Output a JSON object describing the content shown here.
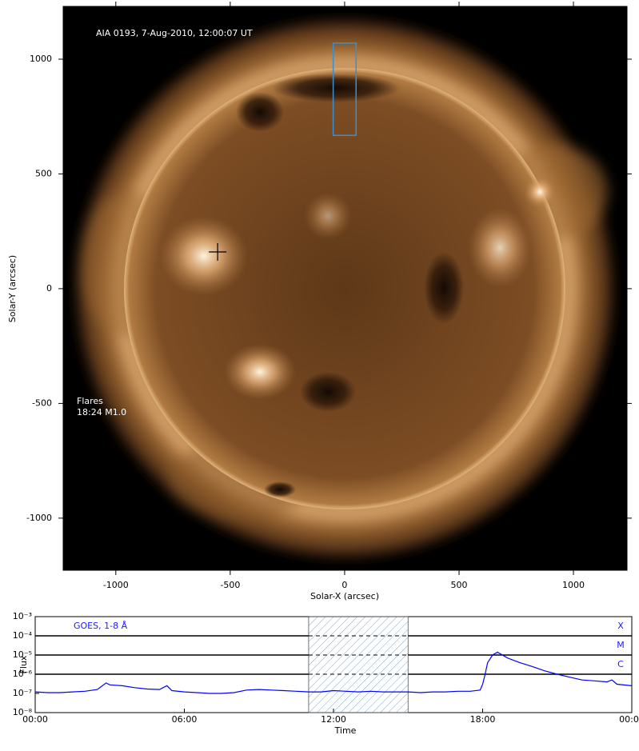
{
  "chart_data": [
    {
      "type": "image",
      "xlabel": "Solar-X (arcsec)",
      "ylabel": "Solar-Y (arcsec)",
      "title": "AIA 0193, 7-Aug-2010, 12:00:07 UT",
      "annotations": [
        "Flares",
        "18:24 M1.0"
      ],
      "xlim": [
        -1230,
        1234
      ],
      "ylim": [
        -1227,
        1230
      ],
      "xticks": [
        -1000,
        -500,
        0,
        500,
        1000
      ],
      "yticks": [
        -1000,
        -500,
        0,
        500,
        1000
      ],
      "box": {
        "x": [
          -50,
          50
        ],
        "y": [
          668,
          1070
        ],
        "color": "#3a8fd0"
      },
      "marker": {
        "x": -555,
        "y": 160
      }
    },
    {
      "type": "line",
      "log_y": true,
      "title": "GOES, 1-8 Å",
      "xlabel": "Time",
      "ylabel": "Flux",
      "xlim": [
        0,
        24
      ],
      "ylim": [
        1e-08,
        0.001
      ],
      "xticks": [
        {
          "value": 0,
          "label": "00:00"
        },
        {
          "value": 6,
          "label": "06:00"
        },
        {
          "value": 12,
          "label": "12:00"
        },
        {
          "value": 18,
          "label": "18:00"
        },
        {
          "value": 24,
          "label": "00:00"
        }
      ],
      "yticks": [
        {
          "value": 1e-08,
          "label": "10⁻⁸"
        },
        {
          "value": 1e-07,
          "label": "10⁻⁷"
        },
        {
          "value": 1e-06,
          "label": "10⁻⁶"
        },
        {
          "value": 1e-05,
          "label": "10⁻⁵"
        },
        {
          "value": 0.0001,
          "label": "10⁻⁴"
        },
        {
          "value": 0.001,
          "label": "10⁻³"
        }
      ],
      "flare_levels": [
        {
          "value": 0.0001,
          "label": "X"
        },
        {
          "value": 1e-05,
          "label": "M"
        },
        {
          "value": 1e-06,
          "label": "C"
        }
      ],
      "highlight": [
        11,
        15
      ],
      "color": "#0000ff",
      "x": [
        0,
        0.5,
        1,
        1.5,
        2,
        2.5,
        2.85,
        3,
        3.5,
        4,
        4.5,
        5,
        5.3,
        5.5,
        6,
        6.5,
        7,
        7.5,
        8,
        8.5,
        9,
        9.5,
        10,
        10.5,
        11,
        11.5,
        12,
        12.5,
        13,
        13.5,
        14,
        14.5,
        15,
        15.5,
        16,
        16.5,
        17,
        17.5,
        17.9,
        18,
        18.1,
        18.2,
        18.4,
        18.6,
        19,
        19.5,
        20,
        20.5,
        21,
        21.5,
        22,
        22.5,
        23,
        23.2,
        23.4,
        24
      ],
      "values": [
        1.2e-07,
        1.1e-07,
        1.1e-07,
        1.2e-07,
        1.3e-07,
        1.6e-07,
        3.5e-07,
        2.8e-07,
        2.5e-07,
        2e-07,
        1.7e-07,
        1.6e-07,
        2.5e-07,
        1.4e-07,
        1.2e-07,
        1.1e-07,
        1e-07,
        1e-07,
        1.1e-07,
        1.5e-07,
        1.6e-07,
        1.5e-07,
        1.4e-07,
        1.3e-07,
        1.2e-07,
        1.2e-07,
        1.4e-07,
        1.3e-07,
        1.2e-07,
        1.3e-07,
        1.2e-07,
        1.2e-07,
        1.2e-07,
        1.1e-07,
        1.2e-07,
        1.2e-07,
        1.3e-07,
        1.3e-07,
        1.5e-07,
        3e-07,
        1e-06,
        4e-06,
        1e-05,
        1.4e-05,
        7e-06,
        4e-06,
        2.5e-06,
        1.5e-06,
        1e-06,
        7e-07,
        5e-07,
        4.5e-07,
        4e-07,
        5e-07,
        3e-07,
        2.5e-07
      ]
    }
  ]
}
